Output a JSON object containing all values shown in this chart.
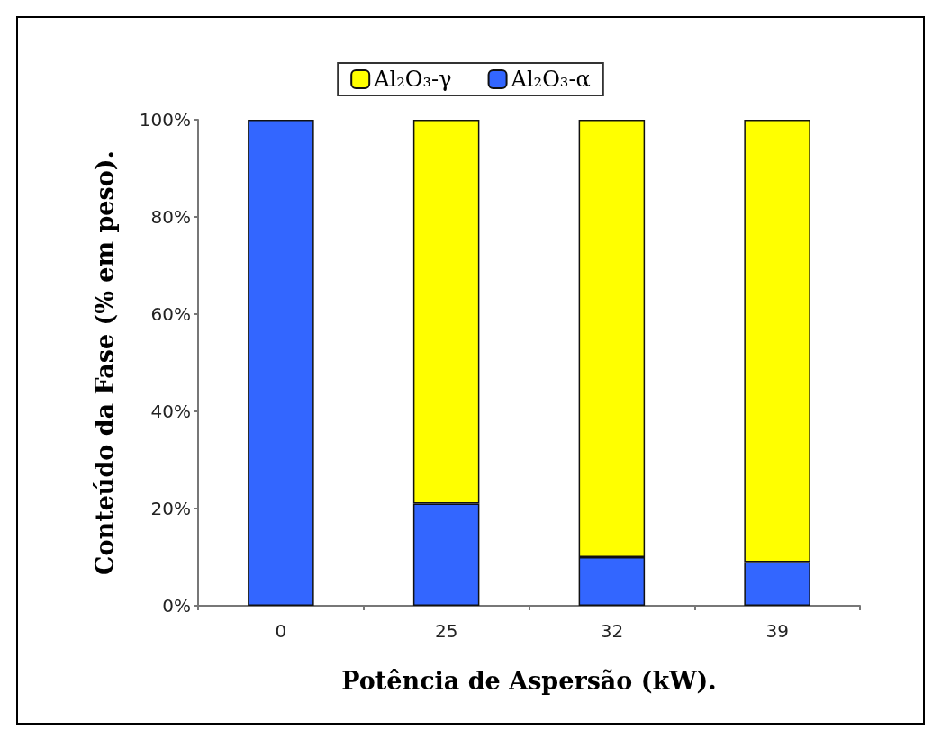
{
  "chart_data": {
    "type": "bar",
    "stacked": true,
    "xlabel": "Potência de Aspersão (kW).",
    "ylabel": "Conteúdo da Fase (% em peso).",
    "categories": [
      "0",
      "25",
      "32",
      "39"
    ],
    "series": [
      {
        "name": "Al₂O₃-α",
        "color": "#3366ff",
        "values": [
          100,
          21,
          10,
          9
        ]
      },
      {
        "name": "Al₂O₃-γ",
        "color": "#ffff00",
        "values": [
          0,
          79,
          90,
          91
        ]
      }
    ],
    "ylim": [
      0,
      100
    ],
    "yticks": [
      {
        "value": 0,
        "label": "0%"
      },
      {
        "value": 20,
        "label": "20%"
      },
      {
        "value": 40,
        "label": "40%"
      },
      {
        "value": 60,
        "label": "60%"
      },
      {
        "value": 80,
        "label": "80%"
      },
      {
        "value": 100,
        "label": "100%"
      }
    ],
    "grid": false,
    "legend": "top"
  }
}
